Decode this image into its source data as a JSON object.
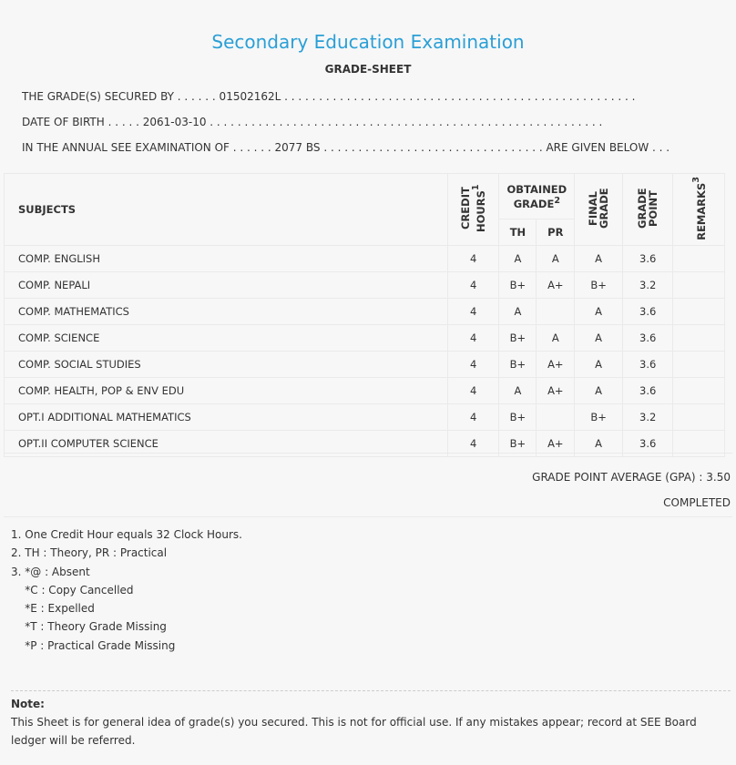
{
  "header": {
    "title": "Secondary Education Examination",
    "subtitle": "GRADE-SHEET"
  },
  "info": {
    "line1": "THE GRADE(S) SECURED BY . . . . . . 01502162L . . . . . . . . . . . . . . . . . . . . . . . . . . . . . . . . . . . . . . . . . . . . . . . . . . .",
    "line2": "DATE OF BIRTH . . . . . 2061-03-10 . . . . . . . . . . . . . . . . . . . . . . . . . . . . . . . . . . . . . . . . . . . . . . . . . . . . . . . . .",
    "line3": "IN THE ANNUAL SEE EXAMINATION OF . . . . . . 2077 BS . . . . . . . . . . . . . . . . . . . . . . . . . . . . . . . . ARE GIVEN BELOW . . ."
  },
  "table": {
    "headers": {
      "subjects": "SUBJECTS",
      "credit": "CREDIT HOURS",
      "credit_sup": "1",
      "obtained": "OBTAINED GRADE",
      "obtained_sup": "2",
      "th": "TH",
      "pr": "PR",
      "final": "FINAL GRADE",
      "gp": "GRADE POINT",
      "remarks": "REMARKS",
      "remarks_sup": "3"
    },
    "rows": [
      {
        "subject": "COMP. ENGLISH",
        "credit": "4",
        "th": "A",
        "pr": "A",
        "final": "A",
        "gp": "3.6",
        "remarks": ""
      },
      {
        "subject": "COMP. NEPALI",
        "credit": "4",
        "th": "B+",
        "pr": "A+",
        "final": "B+",
        "gp": "3.2",
        "remarks": ""
      },
      {
        "subject": "COMP. MATHEMATICS",
        "credit": "4",
        "th": "A",
        "pr": "",
        "final": "A",
        "gp": "3.6",
        "remarks": ""
      },
      {
        "subject": "COMP. SCIENCE",
        "credit": "4",
        "th": "B+",
        "pr": "A",
        "final": "A",
        "gp": "3.6",
        "remarks": ""
      },
      {
        "subject": "COMP. SOCIAL STUDIES",
        "credit": "4",
        "th": "B+",
        "pr": "A+",
        "final": "A",
        "gp": "3.6",
        "remarks": ""
      },
      {
        "subject": "COMP. HEALTH, POP & ENV EDU",
        "credit": "4",
        "th": "A",
        "pr": "A+",
        "final": "A",
        "gp": "3.6",
        "remarks": ""
      },
      {
        "subject": "OPT.I ADDITIONAL MATHEMATICS",
        "credit": "4",
        "th": "B+",
        "pr": "",
        "final": "B+",
        "gp": "3.2",
        "remarks": ""
      },
      {
        "subject": "OPT.II COMPUTER SCIENCE",
        "credit": "4",
        "th": "B+",
        "pr": "A+",
        "final": "A",
        "gp": "3.6",
        "remarks": ""
      }
    ]
  },
  "summary": {
    "gpa": "GRADE POINT AVERAGE (GPA) : 3.50",
    "status": "COMPLETED"
  },
  "footnotes": [
    "1. One Credit Hour equals 32 Clock Hours.",
    "2. TH : Theory, PR : Practical",
    "3. *@ : Absent",
    "    *C : Copy Cancelled",
    "    *E : Expelled",
    "    *T : Theory Grade Missing",
    "    *P : Practical Grade Missing"
  ],
  "note": {
    "label": "Note:",
    "text": "This Sheet is for general idea of grade(s) you secured. This is not for official use. If any mistakes appear; record at SEE Board ledger will be referred."
  }
}
